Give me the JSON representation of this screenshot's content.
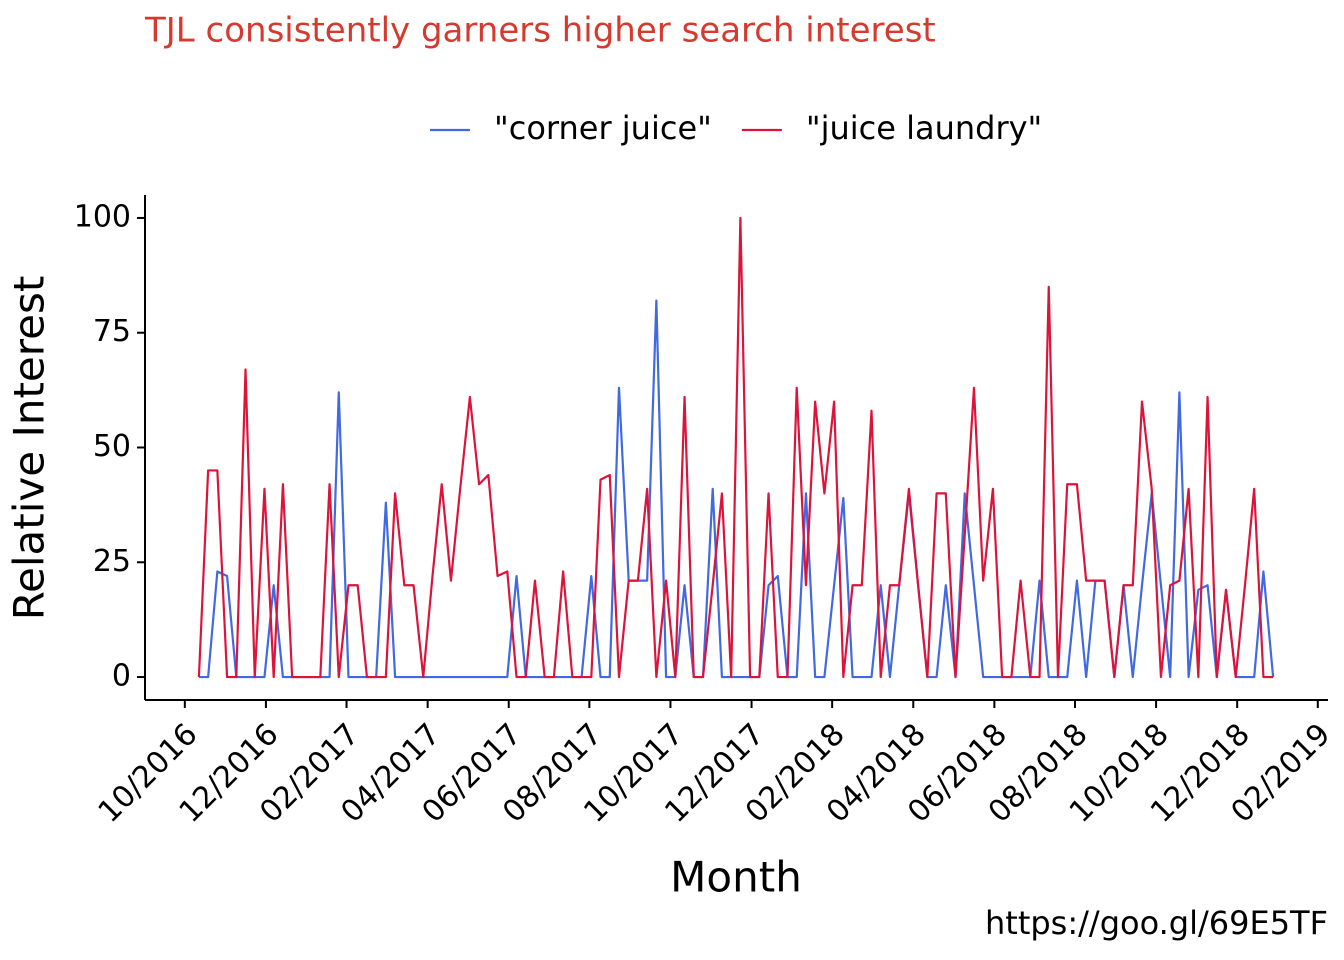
{
  "chart_data": {
    "type": "line",
    "title": "TJL consistently garners higher search interest",
    "x_label": "Month",
    "y_label": "Relative Interest",
    "caption": "https://goo.gl/69E5TF",
    "legend": "top",
    "x": [
      2016.779,
      2016.798,
      2016.817,
      2016.837,
      2016.856,
      2016.875,
      2016.894,
      2016.914,
      2016.933,
      2016.952,
      2016.971,
      2016.991,
      2017.01,
      2017.029,
      2017.048,
      2017.067,
      2017.087,
      2017.106,
      2017.125,
      2017.144,
      2017.164,
      2017.183,
      2017.202,
      2017.221,
      2017.241,
      2017.26,
      2017.279,
      2017.298,
      2017.317,
      2017.337,
      2017.356,
      2017.375,
      2017.394,
      2017.414,
      2017.433,
      2017.452,
      2017.471,
      2017.491,
      2017.51,
      2017.529,
      2017.548,
      2017.567,
      2017.587,
      2017.606,
      2017.625,
      2017.644,
      2017.664,
      2017.683,
      2017.702,
      2017.721,
      2017.741,
      2017.76,
      2017.779,
      2017.798,
      2017.817,
      2017.837,
      2017.856,
      2017.875,
      2017.894,
      2017.914,
      2017.933,
      2017.952,
      2017.971,
      2017.991,
      2018.01,
      2018.029,
      2018.048,
      2018.067,
      2018.087,
      2018.106,
      2018.125,
      2018.144,
      2018.164,
      2018.183,
      2018.202,
      2018.221,
      2018.241,
      2018.26,
      2018.279,
      2018.298,
      2018.317,
      2018.337,
      2018.356,
      2018.375,
      2018.394,
      2018.414,
      2018.433,
      2018.452,
      2018.471,
      2018.491,
      2018.51,
      2018.529,
      2018.548,
      2018.567,
      2018.587,
      2018.606,
      2018.625,
      2018.644,
      2018.664,
      2018.683,
      2018.702,
      2018.721,
      2018.741,
      2018.76,
      2018.779,
      2018.798,
      2018.817,
      2018.837,
      2018.856,
      2018.875,
      2018.894,
      2018.914,
      2018.933,
      2018.952,
      2018.971,
      2018.991
    ],
    "series": [
      {
        "name": "\"corner juice\"",
        "color": "#4169e1",
        "values": [
          0,
          0,
          23,
          22,
          0,
          0,
          0,
          0,
          20,
          0,
          0,
          0,
          0,
          0,
          0,
          62,
          0,
          0,
          0,
          0,
          38,
          0,
          0,
          0,
          0,
          0,
          0,
          0,
          0,
          0,
          0,
          0,
          0,
          0,
          22,
          0,
          0,
          0,
          0,
          0,
          0,
          0,
          22,
          0,
          0,
          63,
          21,
          21,
          21,
          82,
          0,
          0,
          20,
          0,
          0,
          41,
          0,
          0,
          0,
          0,
          0,
          20,
          22,
          0,
          0,
          40,
          0,
          0,
          20,
          39,
          0,
          0,
          0,
          20,
          0,
          20,
          40,
          20,
          0,
          0,
          20,
          0,
          40,
          20,
          0,
          0,
          0,
          0,
          0,
          0,
          21,
          0,
          0,
          0,
          21,
          0,
          21,
          21,
          0,
          20,
          0,
          20,
          40,
          20,
          0,
          62,
          0,
          19,
          20,
          0,
          19,
          0,
          0,
          0,
          23,
          0
        ]
      },
      {
        "name": "\"juice laundry\"",
        "color": "#dc143c",
        "values": [
          0,
          45,
          45,
          0,
          0,
          67,
          0,
          41,
          0,
          42,
          0,
          0,
          0,
          0,
          42,
          0,
          20,
          20,
          0,
          0,
          0,
          40,
          20,
          20,
          0,
          22,
          42,
          21,
          41,
          61,
          42,
          44,
          22,
          23,
          0,
          0,
          21,
          0,
          0,
          23,
          0,
          0,
          0,
          43,
          44,
          0,
          21,
          21,
          41,
          0,
          21,
          0,
          61,
          0,
          0,
          20,
          40,
          0,
          100,
          0,
          0,
          40,
          0,
          0,
          63,
          20,
          60,
          40,
          60,
          0,
          20,
          20,
          58,
          0,
          20,
          20,
          41,
          20,
          0,
          40,
          40,
          0,
          31,
          63,
          21,
          41,
          0,
          0,
          21,
          0,
          0,
          85,
          0,
          42,
          42,
          21,
          21,
          21,
          0,
          20,
          20,
          60,
          41,
          0,
          20,
          21,
          41,
          0,
          61,
          0,
          19,
          0,
          20,
          41,
          0,
          0
        ]
      }
    ],
    "xlim": [
      2016.668,
      2019.104
    ],
    "xticks": [
      {
        "value": 2016.75,
        "label": "10/2016"
      },
      {
        "value": 2016.917,
        "label": "12/2016"
      },
      {
        "value": 2017.083,
        "label": "02/2017"
      },
      {
        "value": 2017.25,
        "label": "04/2017"
      },
      {
        "value": 2017.417,
        "label": "06/2017"
      },
      {
        "value": 2017.583,
        "label": "08/2017"
      },
      {
        "value": 2017.75,
        "label": "10/2017"
      },
      {
        "value": 2017.917,
        "label": "12/2017"
      },
      {
        "value": 2018.083,
        "label": "02/2018"
      },
      {
        "value": 2018.25,
        "label": "04/2018"
      },
      {
        "value": 2018.417,
        "label": "06/2018"
      },
      {
        "value": 2018.583,
        "label": "08/2018"
      },
      {
        "value": 2018.75,
        "label": "10/2018"
      },
      {
        "value": 2018.917,
        "label": "12/2018"
      },
      {
        "value": 2019.083,
        "label": "02/2019"
      }
    ],
    "ylim": [
      -5,
      105
    ],
    "yticks": [
      0,
      25,
      50,
      75,
      100
    ],
    "grid": false
  }
}
